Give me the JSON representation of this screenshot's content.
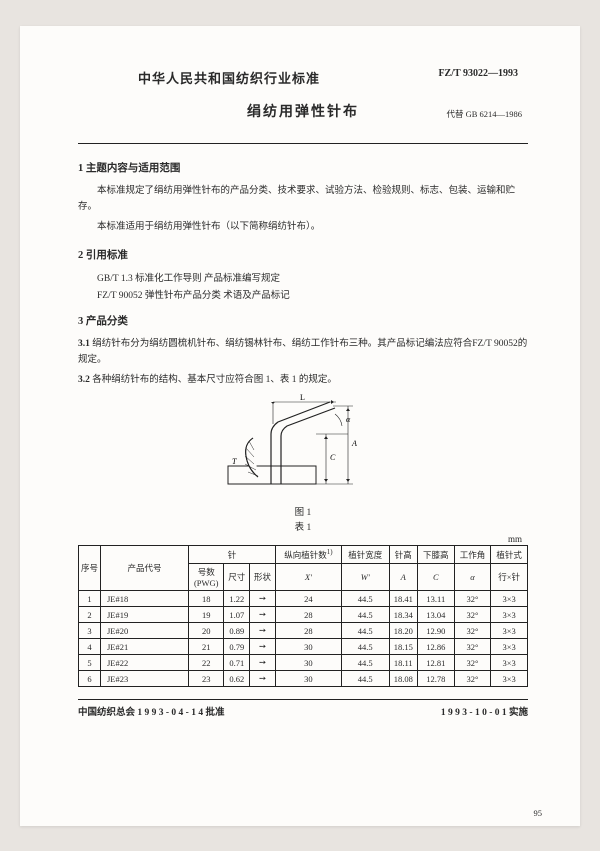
{
  "header": {
    "org_title": "中华人民共和国纺织行业标准",
    "std_code": "FZ/T 93022—1993",
    "main_title": "绢纺用弹性针布",
    "replaces": "代替 GB 6214—1986"
  },
  "sections": {
    "s1": {
      "head": "1  主题内容与适用范围",
      "p1": "本标准规定了绢纺用弹性针布的产品分类、技术要求、试验方法、检验规则、标志、包装、运输和贮存。",
      "p2": "本标准适用于绢纺用弹性针布（以下简称绢纺针布）。"
    },
    "s2": {
      "head": "2  引用标准",
      "ref1": "GB/T 1.3   标准化工作导则  产品标准编写规定",
      "ref2": "FZ/T 90052  弹性针布产品分类  术语及产品标记"
    },
    "s3": {
      "head": "3  产品分类",
      "c31_num": "3.1",
      "c31_text": "  绢纺针布分为绢纺圆梳机针布、绢纺锡林针布、绢纺工作针布三种。其产品标记编法应符合FZ/T 90052的规定。",
      "c32_num": "3.2",
      "c32_text": "  各种绢纺针布的结构、基本尺寸应符合图 1、表 1 的规定。"
    }
  },
  "figure": {
    "caption": "图 1",
    "labels": {
      "L": "L",
      "a": "α",
      "A": "A",
      "C": "C",
      "T": "T"
    }
  },
  "table": {
    "caption": "表 1",
    "unit": "mm",
    "head": {
      "seq": "序号",
      "code": "产品代号",
      "needle_group": "针",
      "needle_num": "号数\n(PWG)",
      "size": "尺寸",
      "shape": "形状",
      "x_group": "纵向植针数",
      "x": "X'",
      "w_group": "植针宽度",
      "w": "W'",
      "A": "针高",
      "A2": "A",
      "C": "下膝高",
      "C2": "C",
      "alpha": "工作角",
      "alpha2": "α",
      "arr": "植针式",
      "arr2": "行×针"
    },
    "rows": [
      {
        "seq": "1",
        "code": "JE#18",
        "num": "18",
        "size": "1.22",
        "shape": "➙",
        "x": "24",
        "w": "44.5",
        "A": "18.41",
        "C": "13.11",
        "alpha": "32°",
        "arr": "3×3"
      },
      {
        "seq": "2",
        "code": "JE#19",
        "num": "19",
        "size": "1.07",
        "shape": "➙",
        "x": "28",
        "w": "44.5",
        "A": "18.34",
        "C": "13.04",
        "alpha": "32°",
        "arr": "3×3"
      },
      {
        "seq": "3",
        "code": "JE#20",
        "num": "20",
        "size": "0.89",
        "shape": "➙",
        "x": "28",
        "w": "44.5",
        "A": "18.20",
        "C": "12.90",
        "alpha": "32°",
        "arr": "3×3"
      },
      {
        "seq": "4",
        "code": "JE#21",
        "num": "21",
        "size": "0.79",
        "shape": "➙",
        "x": "30",
        "w": "44.5",
        "A": "18.15",
        "C": "12.86",
        "alpha": "32°",
        "arr": "3×3"
      },
      {
        "seq": "5",
        "code": "JE#22",
        "num": "22",
        "size": "0.71",
        "shape": "➙",
        "x": "30",
        "w": "44.5",
        "A": "18.11",
        "C": "12.81",
        "alpha": "32°",
        "arr": "3×3"
      },
      {
        "seq": "6",
        "code": "JE#23",
        "num": "23",
        "size": "0.62",
        "shape": "➙",
        "x": "30",
        "w": "44.5",
        "A": "18.08",
        "C": "12.78",
        "alpha": "32°",
        "arr": "3×3"
      }
    ]
  },
  "footer": {
    "approve": "中国纺织总会 1 9 9 3 - 0 4 - 1 4 批准",
    "impl": "1 9 9 3 - 1 0 - 0 1 实施",
    "pagenum": "95"
  },
  "style": {
    "page_bg": "#fdfcfa",
    "body_bg": "#e8e4e0",
    "text_color": "#2a2a2a",
    "border_color": "#222222",
    "title_fontsize": 14,
    "org_fontsize": 13,
    "body_fontsize": 9.5,
    "table_fontsize": 8.5
  }
}
